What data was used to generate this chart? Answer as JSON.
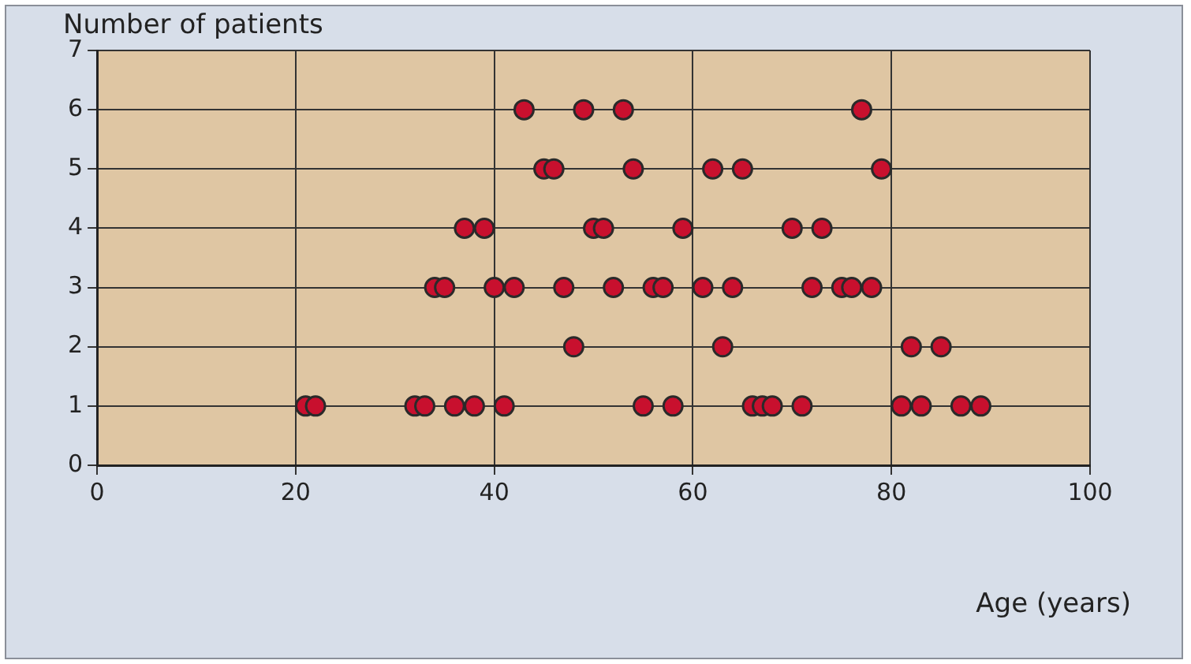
{
  "chart_data": {
    "type": "scatter",
    "ylabel": "Number of patients",
    "xlabel": "Age (years)",
    "x": [
      21,
      22,
      32,
      33,
      36,
      38,
      41,
      55,
      58,
      66,
      67,
      68,
      71,
      81,
      83,
      87,
      89,
      48,
      63,
      82,
      85,
      34,
      35,
      40,
      42,
      47,
      52,
      56,
      57,
      61,
      64,
      72,
      75,
      76,
      78,
      37,
      39,
      50,
      51,
      59,
      70,
      73,
      45,
      46,
      54,
      62,
      65,
      79,
      43,
      49,
      53,
      77
    ],
    "values": [
      1,
      1,
      1,
      1,
      1,
      1,
      1,
      1,
      1,
      1,
      1,
      1,
      1,
      1,
      1,
      1,
      1,
      2,
      2,
      2,
      2,
      3,
      3,
      3,
      3,
      3,
      3,
      3,
      3,
      3,
      3,
      3,
      3,
      3,
      3,
      4,
      4,
      4,
      4,
      4,
      4,
      4,
      5,
      5,
      5,
      5,
      5,
      5,
      6,
      6,
      6,
      6
    ],
    "color": "#c8102e",
    "marker": "circle",
    "xlim": [
      0,
      100
    ],
    "xticks": [
      0,
      20,
      40,
      60,
      80,
      100
    ],
    "ylim": [
      0,
      7
    ],
    "yticks": [
      0,
      1,
      2,
      3,
      4,
      5,
      6,
      7
    ],
    "grid": true
  }
}
